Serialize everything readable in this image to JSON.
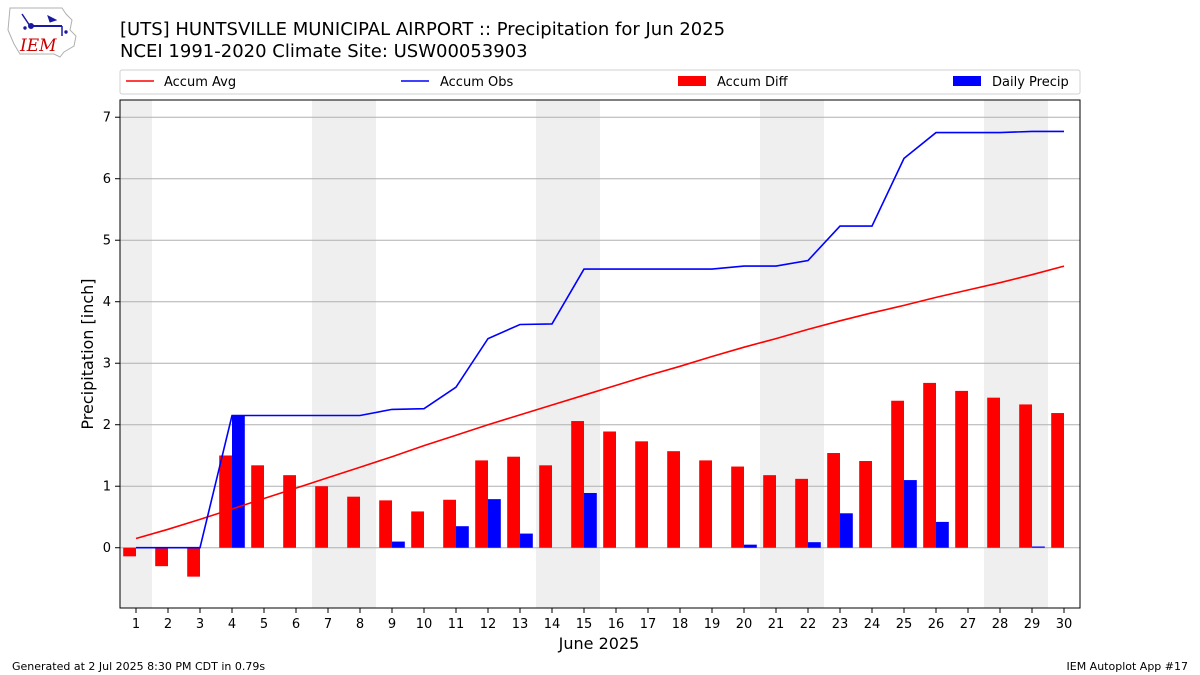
{
  "chart_data": {
    "type": "bar",
    "title": "[UTS] HUNTSVILLE MUNICIPAL AIRPORT :: Precipitation for Jun 2025",
    "subtitle": "NCEI 1991-2020 Climate Site: USW00053903",
    "xlabel": "June 2025",
    "ylabel": "Precipitation [inch]",
    "ylim": [
      -0.98,
      7.28
    ],
    "yticks": [
      0,
      1,
      2,
      3,
      4,
      5,
      6,
      7
    ],
    "xlim": [
      0.5,
      30.5
    ],
    "x": [
      1,
      2,
      3,
      4,
      5,
      6,
      7,
      8,
      9,
      10,
      11,
      12,
      13,
      14,
      15,
      16,
      17,
      18,
      19,
      20,
      21,
      22,
      23,
      24,
      25,
      26,
      27,
      28,
      29,
      30
    ],
    "weekend_days": [
      1,
      7,
      8,
      14,
      15,
      21,
      22,
      28,
      29
    ],
    "grid": "horizontal",
    "legend_placement": "top",
    "series": [
      {
        "name": "Accum Avg",
        "type": "line",
        "color": "#ff0000",
        "values": [
          0.15,
          0.3,
          0.46,
          0.63,
          0.8,
          0.97,
          1.14,
          1.31,
          1.48,
          1.66,
          1.83,
          2.0,
          2.16,
          2.32,
          2.48,
          2.64,
          2.8,
          2.95,
          3.11,
          3.26,
          3.4,
          3.55,
          3.69,
          3.82,
          3.94,
          4.07,
          4.19,
          4.31,
          4.44,
          4.58
        ]
      },
      {
        "name": "Accum Obs",
        "type": "line",
        "color": "#0000ff",
        "values": [
          0.0,
          0.0,
          0.0,
          2.15,
          2.15,
          2.15,
          2.15,
          2.15,
          2.25,
          2.26,
          2.61,
          3.4,
          3.63,
          3.64,
          4.53,
          4.53,
          4.53,
          4.53,
          4.53,
          4.58,
          4.58,
          4.67,
          5.23,
          5.23,
          6.33,
          6.75,
          6.75,
          6.75,
          6.77,
          6.77
        ]
      },
      {
        "name": "Accum Diff",
        "type": "bar",
        "color": "#ff0000",
        "values": [
          -0.14,
          -0.3,
          -0.47,
          1.5,
          1.34,
          1.18,
          1.0,
          0.83,
          0.77,
          0.59,
          0.78,
          1.42,
          1.48,
          1.34,
          2.06,
          1.89,
          1.73,
          1.57,
          1.42,
          1.32,
          1.18,
          1.12,
          1.54,
          1.41,
          2.39,
          2.68,
          2.55,
          2.44,
          2.33,
          2.19
        ]
      },
      {
        "name": "Daily Precip",
        "type": "bar",
        "color": "#0000ff",
        "values": [
          0.0,
          0.0,
          0.0,
          2.15,
          0.0,
          0.0,
          0.0,
          0.0,
          0.1,
          0.0,
          0.35,
          0.79,
          0.23,
          0.0,
          0.89,
          0.0,
          0.0,
          0.0,
          0.0,
          0.05,
          0.0,
          0.09,
          0.56,
          0.0,
          1.1,
          0.42,
          0.0,
          0.0,
          0.02,
          0.0
        ]
      }
    ]
  },
  "logo": {
    "text": "IEM",
    "brand_color": "#cc0000"
  },
  "footer": {
    "generated": "Generated at 2 Jul 2025 8:30 PM CDT in 0.79s",
    "app": "IEM Autoplot App #17"
  }
}
